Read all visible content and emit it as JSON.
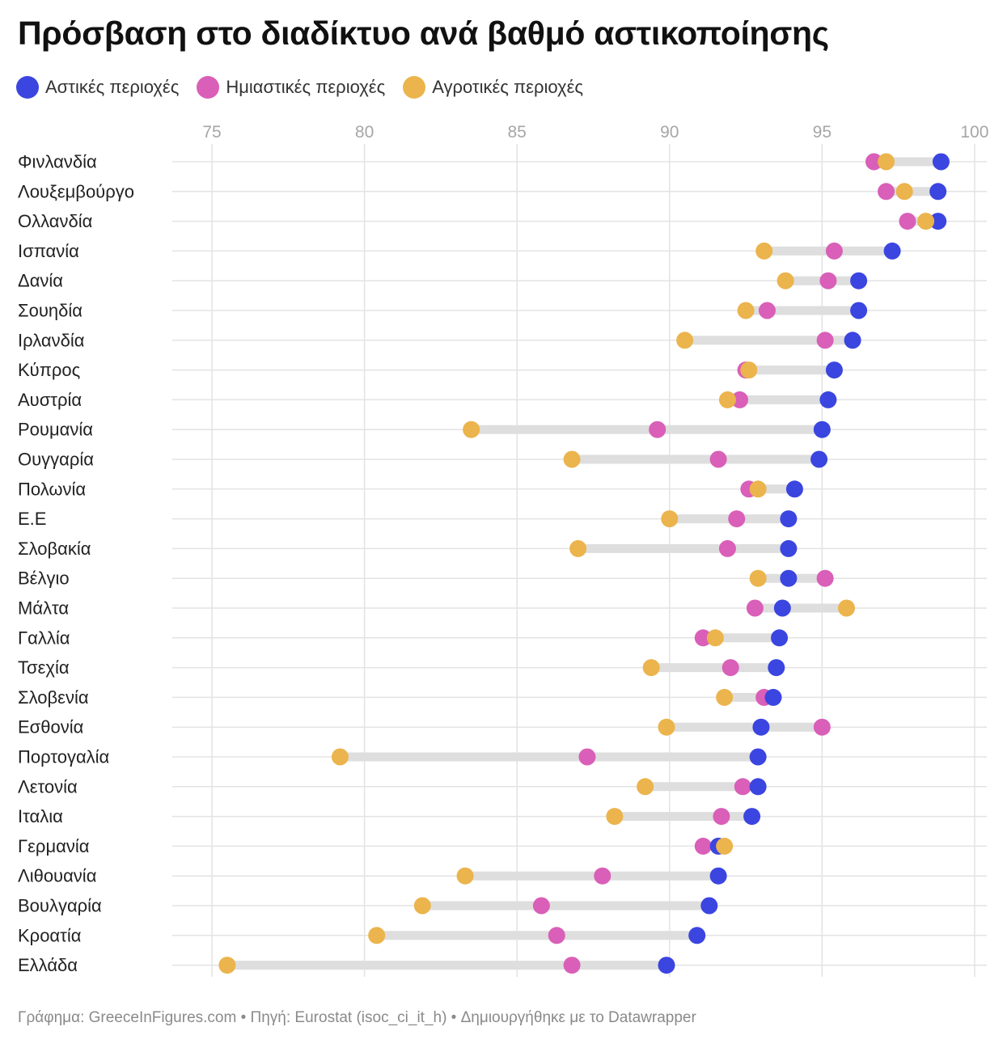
{
  "colors": {
    "urban": "#3b45e0",
    "suburban": "#d95fb8",
    "rural": "#ebb44c",
    "grid": "#e3e3e3",
    "range_bar": "#dedede",
    "tick_text": "#a6a6a6",
    "label_text": "#222222"
  },
  "footer": {
    "text": "Γράφημα: GreeceInFigures.com • Πηγή: Eurostat (isoc_ci_it_h) • Δημιουργήθηκε με το Datawrapper"
  },
  "chart_data": {
    "type": "dot-range",
    "title": "Πρόσβαση στο διαδίκτυο ανά βαθμό αστικοποίησης",
    "xlim": [
      73.7,
      100.4
    ],
    "xticks": [
      75,
      80,
      85,
      90,
      95,
      100
    ],
    "xtick_labels": [
      "75",
      "80",
      "85",
      "90",
      "95",
      "100"
    ],
    "legend": [
      {
        "key": "urban",
        "label": "Αστικές περιοχές"
      },
      {
        "key": "suburban",
        "label": "Ημιαστικές περιοχές"
      },
      {
        "key": "rural",
        "label": "Αγροτικές περιοχές"
      }
    ],
    "categories": [
      "Φινλανδία",
      "Λουξεμβούργο",
      "Ολλανδία",
      "Ισπανία",
      "Δανία",
      "Σουηδία",
      "Ιρλανδία",
      "Κύπρος",
      "Αυστρία",
      "Ρουμανία",
      "Ουγγαρία",
      "Πολωνία",
      "Ε.Ε",
      "Σλοβακία",
      "Βέλγιο",
      "Μάλτα",
      "Γαλλία",
      "Τσεχία",
      "Σλοβενία",
      "Εσθονία",
      "Πορτογαλία",
      "Λετονία",
      "Ιταλια",
      "Γερμανία",
      "Λιθουανία",
      "Βουλγαρία",
      "Κροατία",
      "Ελλάδα"
    ],
    "series": [
      {
        "key": "urban",
        "name": "Αστικές περιοχές",
        "values": [
          98.9,
          98.8,
          98.8,
          97.3,
          96.2,
          96.2,
          96.0,
          95.4,
          95.2,
          95.0,
          94.9,
          94.1,
          93.9,
          93.9,
          93.9,
          93.7,
          93.6,
          93.5,
          93.4,
          93.0,
          92.9,
          92.9,
          92.7,
          91.6,
          91.6,
          91.3,
          90.9,
          89.9
        ]
      },
      {
        "key": "suburban",
        "name": "Ημιαστικές περιοχές",
        "values": [
          96.7,
          97.1,
          97.8,
          95.4,
          95.2,
          93.2,
          95.1,
          92.5,
          92.3,
          89.6,
          91.6,
          92.6,
          92.2,
          91.9,
          95.1,
          92.8,
          91.1,
          92.0,
          93.1,
          95.0,
          87.3,
          92.4,
          91.7,
          91.1,
          87.8,
          85.8,
          86.3,
          86.8
        ]
      },
      {
        "key": "rural",
        "name": "Αγροτικές περιοχές",
        "values": [
          97.1,
          97.7,
          98.4,
          93.1,
          93.8,
          92.5,
          90.5,
          92.6,
          91.9,
          83.5,
          86.8,
          92.9,
          90.0,
          87.0,
          92.9,
          95.8,
          91.5,
          89.4,
          91.8,
          89.9,
          79.2,
          89.2,
          88.2,
          91.8,
          83.3,
          81.9,
          80.4,
          75.5
        ]
      }
    ]
  }
}
